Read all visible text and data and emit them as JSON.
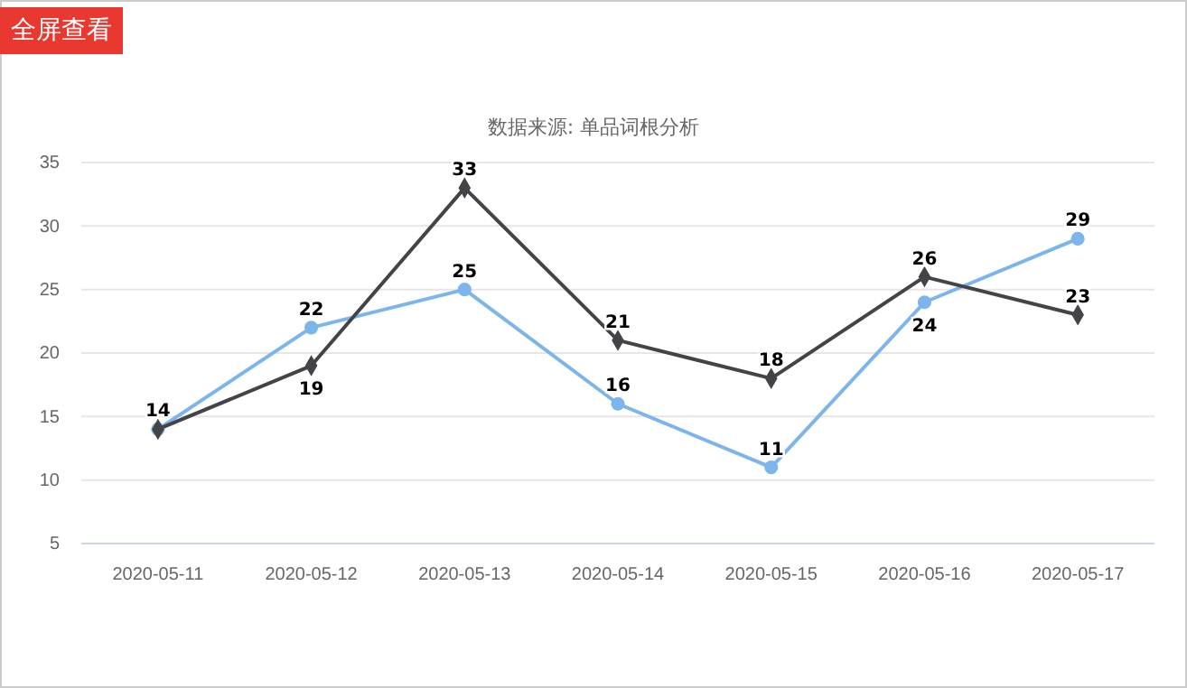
{
  "chart_data": {
    "type": "line",
    "subtitle": "数据来源: 单品词根分析",
    "annotations": [
      "全屏查看"
    ],
    "categories": [
      "2020-05-11",
      "2020-05-12",
      "2020-05-13",
      "2020-05-14",
      "2020-05-15",
      "2020-05-16",
      "2020-05-17"
    ],
    "series": [
      {
        "color": "#7cb5ec",
        "marker": "circle",
        "values": [
          14,
          22,
          25,
          16,
          11,
          24,
          29
        ]
      },
      {
        "color": "#434348",
        "marker": "diamond",
        "values": [
          14,
          19,
          33,
          21,
          18,
          26,
          23
        ],
        "value_labels": [
          null,
          "19",
          "33",
          "21",
          "18",
          "26",
          "23"
        ]
      }
    ],
    "ylim": [
      5,
      35
    ],
    "yticks": [
      5,
      10,
      15,
      20,
      25,
      30,
      35
    ],
    "grid": "y",
    "data_labels": true
  }
}
